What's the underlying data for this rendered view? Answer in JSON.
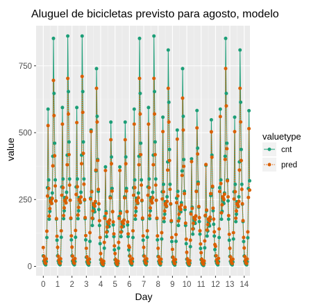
{
  "chart_data": {
    "type": "line",
    "title": "Aluguel de bicicletas previsto para agosto, modelo",
    "xlabel": "Day",
    "ylabel": "value",
    "xlim": [
      -0.5,
      14.4
    ],
    "ylim": [
      -35,
      900
    ],
    "x_ticks": [
      0,
      1,
      2,
      3,
      4,
      5,
      6,
      7,
      8,
      9,
      10,
      11,
      12,
      13,
      14
    ],
    "y_ticks": [
      0,
      250,
      500,
      750
    ],
    "grid": true,
    "background": "#ebebeb",
    "legend": {
      "title": "valuetype",
      "position": "right"
    },
    "hours_per_day": 24,
    "series": [
      {
        "name": "cnt",
        "color": "#1b9e77",
        "line_style": "solid",
        "daily_profile": [
          40,
          20,
          12,
          8,
          6,
          18,
          110,
          300,
          600,
          330,
          180,
          210,
          260,
          250,
          240,
          280,
          420,
          870,
          660,
          470,
          330,
          250,
          180,
          100
        ],
        "day_scale": [
          0.98,
          0.99,
          0.99,
          0.85,
          0.62,
          0.62,
          0.98,
          0.99,
          0.93,
          0.85,
          0.67,
          0.63,
          0.98,
          0.93,
          0.97
        ]
      },
      {
        "name": "pred",
        "color": "#d95f02",
        "line_style": "dotted",
        "daily_profile": [
          75,
          40,
          25,
          15,
          12,
          30,
          140,
          280,
          560,
          310,
          200,
          230,
          260,
          255,
          250,
          270,
          400,
          740,
          600,
          440,
          320,
          260,
          190,
          120
        ],
        "day_scale": [
          0.94,
          0.95,
          0.96,
          0.9,
          0.64,
          0.64,
          0.95,
          0.95,
          0.9,
          0.85,
          0.7,
          0.68,
          1.0,
          0.9,
          0.92
        ]
      }
    ]
  }
}
